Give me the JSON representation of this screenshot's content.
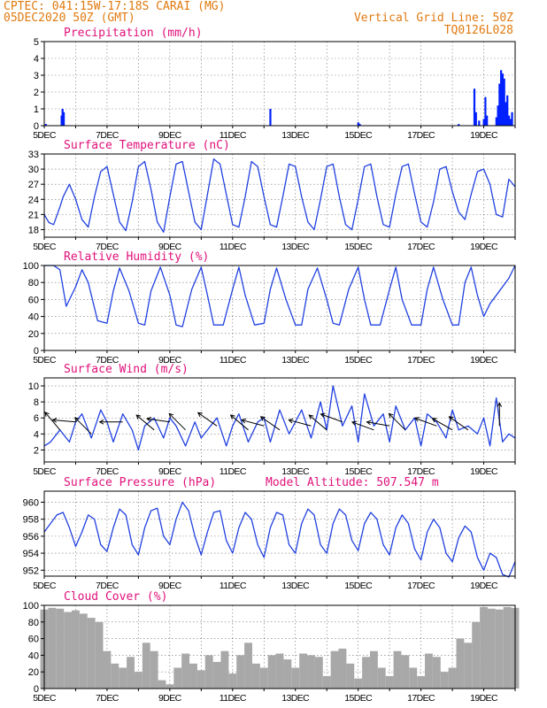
{
  "header": {
    "line1_left": "CPTEC:   041:15W-17:18S  CARAI (MG)",
    "line2_left": "05DEC2020 50Z (GMT)",
    "line1_right": "Vertical Grid Line: 50Z",
    "line2_right": "TQ0126L028",
    "header_color": "#e07a10",
    "title_color": "#e0107a"
  },
  "x_axis": {
    "tick_labels": [
      "5DEC",
      "7DEC",
      "9DEC",
      "11DEC",
      "13DEC",
      "15DEC",
      "17DEC",
      "19DEC"
    ],
    "start_day": 5,
    "end_day": 20
  },
  "chart_data": [
    {
      "id": "precipitation",
      "type": "bar",
      "title": "Precipitation (mm/h)",
      "ylim": [
        0,
        5
      ],
      "yticks": [
        "0",
        "1",
        "2",
        "3",
        "4",
        "5"
      ],
      "color": "#0020ff",
      "grid": true,
      "x": [
        5.05,
        5.55,
        5.58,
        5.62,
        12.2,
        15.0,
        15.05,
        18.2,
        18.7,
        18.75,
        18.85,
        19.0,
        19.05,
        19.1,
        19.4,
        19.45,
        19.5,
        19.55,
        19.6,
        19.65,
        19.7,
        19.75,
        19.8,
        19.85,
        19.9
      ],
      "values": [
        0.1,
        0.6,
        1.0,
        0.8,
        1.0,
        0.2,
        0.1,
        0.1,
        2.2,
        0.8,
        0.3,
        0.4,
        1.7,
        0.6,
        0.5,
        1.2,
        2.5,
        3.3,
        3.1,
        2.8,
        1.4,
        1.8,
        0.6,
        0.4,
        0.8
      ]
    },
    {
      "id": "temperature",
      "type": "line",
      "title": "Surface Temperature (nC)",
      "ylim": [
        16.5,
        33
      ],
      "yticks": [
        "18",
        "21",
        "24",
        "27",
        "30",
        "33"
      ],
      "color": "#2040e0",
      "grid": true,
      "x": [
        5.0,
        5.15,
        5.3,
        5.5,
        5.6,
        5.8,
        6.0,
        6.2,
        6.4,
        6.6,
        6.8,
        7.0,
        7.2,
        7.4,
        7.6,
        7.8,
        8.0,
        8.2,
        8.4,
        8.6,
        8.8,
        9.0,
        9.2,
        9.4,
        9.6,
        9.8,
        10.0,
        10.2,
        10.4,
        10.6,
        10.8,
        11.0,
        11.2,
        11.4,
        11.6,
        11.8,
        12.0,
        12.2,
        12.4,
        12.6,
        12.8,
        13.0,
        13.2,
        13.4,
        13.6,
        13.8,
        14.0,
        14.2,
        14.4,
        14.6,
        14.8,
        15.0,
        15.2,
        15.4,
        15.6,
        15.8,
        16.0,
        16.2,
        16.4,
        16.6,
        16.8,
        17.0,
        17.2,
        17.4,
        17.6,
        17.8,
        18.0,
        18.2,
        18.4,
        18.6,
        18.8,
        19.0,
        19.2,
        19.4,
        19.6,
        19.8,
        20.0
      ],
      "values": [
        21.0,
        19.4,
        19.0,
        22.5,
        24.5,
        27.0,
        24.0,
        20.0,
        18.5,
        24.5,
        29.5,
        30.5,
        25.0,
        19.5,
        17.8,
        23.5,
        30.5,
        31.5,
        26.0,
        19.5,
        17.5,
        24.5,
        31.0,
        31.5,
        25.5,
        19.5,
        18.0,
        25.0,
        32.0,
        31.0,
        25.0,
        19.0,
        18.5,
        24.5,
        31.5,
        30.5,
        24.5,
        19.0,
        18.5,
        24.5,
        31.0,
        30.5,
        24.5,
        19.5,
        18.0,
        24.0,
        30.5,
        31.0,
        24.5,
        19.0,
        18.0,
        24.0,
        30.5,
        31.0,
        24.5,
        19.0,
        18.5,
        25.0,
        30.5,
        31.0,
        25.0,
        19.5,
        18.5,
        23.5,
        30.0,
        30.5,
        25.5,
        21.5,
        20.0,
        25.0,
        29.5,
        30.0,
        27.0,
        21.0,
        20.5,
        28.0,
        26.5
      ]
    },
    {
      "id": "humidity",
      "type": "line",
      "title": "Relative Humidity (%)",
      "ylim": [
        0,
        100
      ],
      "yticks": [
        "0",
        "20",
        "40",
        "60",
        "80",
        "100"
      ],
      "color": "#2040e0",
      "grid": true,
      "x": [
        5.0,
        5.3,
        5.5,
        5.7,
        6.0,
        6.2,
        6.4,
        6.7,
        7.0,
        7.2,
        7.4,
        7.7,
        8.0,
        8.2,
        8.4,
        8.7,
        9.0,
        9.2,
        9.4,
        9.7,
        10.0,
        10.2,
        10.4,
        10.7,
        11.0,
        11.2,
        11.4,
        11.7,
        12.0,
        12.2,
        12.4,
        12.7,
        13.0,
        13.2,
        13.4,
        13.7,
        14.0,
        14.2,
        14.4,
        14.7,
        15.0,
        15.2,
        15.4,
        15.7,
        16.0,
        16.2,
        16.4,
        16.7,
        17.0,
        17.2,
        17.4,
        17.7,
        18.0,
        18.2,
        18.4,
        18.6,
        18.8,
        19.0,
        19.2,
        19.5,
        19.8,
        20.0
      ],
      "values": [
        100,
        100,
        95,
        52,
        75,
        95,
        80,
        35,
        32,
        70,
        97,
        70,
        32,
        30,
        70,
        98,
        65,
        30,
        28,
        72,
        98,
        65,
        30,
        30,
        72,
        98,
        65,
        30,
        32,
        72,
        97,
        60,
        30,
        30,
        72,
        97,
        60,
        32,
        30,
        72,
        98,
        60,
        30,
        30,
        72,
        98,
        60,
        30,
        30,
        72,
        98,
        60,
        30,
        30,
        80,
        98,
        65,
        40,
        55,
        70,
        85,
        100
      ]
    },
    {
      "id": "wind",
      "type": "line",
      "title": "Surface Wind (m/s)",
      "ylim": [
        0.5,
        11
      ],
      "yticks": [
        "2",
        "4",
        "6",
        "8",
        "10"
      ],
      "color": "#2040e0",
      "grid": true,
      "x": [
        5.0,
        5.2,
        5.5,
        5.8,
        6.0,
        6.2,
        6.5,
        6.8,
        7.0,
        7.2,
        7.5,
        7.8,
        8.0,
        8.2,
        8.5,
        8.8,
        9.0,
        9.2,
        9.5,
        9.8,
        10.0,
        10.2,
        10.5,
        10.8,
        11.0,
        11.2,
        11.5,
        11.8,
        12.0,
        12.2,
        12.5,
        12.8,
        13.0,
        13.2,
        13.5,
        13.8,
        14.0,
        14.2,
        14.5,
        14.8,
        15.0,
        15.2,
        15.5,
        15.8,
        16.0,
        16.2,
        16.5,
        16.8,
        17.0,
        17.2,
        17.5,
        17.8,
        18.0,
        18.2,
        18.5,
        18.8,
        19.0,
        19.2,
        19.4,
        19.6,
        19.8,
        20.0
      ],
      "values": [
        2.5,
        3.0,
        4.5,
        3.0,
        5.5,
        6.5,
        3.5,
        7.0,
        5.5,
        3.0,
        6.5,
        4.5,
        2.0,
        5.0,
        6.0,
        3.5,
        6.0,
        5.0,
        2.5,
        5.5,
        3.5,
        4.5,
        6.0,
        2.5,
        5.0,
        6.5,
        3.0,
        5.5,
        6.0,
        3.0,
        7.0,
        4.0,
        5.5,
        7.0,
        3.5,
        8.0,
        4.5,
        10.0,
        5.0,
        7.5,
        3.0,
        9.0,
        5.0,
        6.5,
        3.0,
        7.5,
        4.5,
        6.0,
        2.5,
        6.5,
        5.5,
        3.5,
        7.0,
        4.5,
        5.0,
        4.0,
        6.0,
        2.5,
        8.5,
        3.0,
        4.0,
        3.5
      ],
      "arrows": [
        {
          "day": 5.5,
          "speed": 4.5,
          "dir": -50
        },
        {
          "day": 6.0,
          "speed": 5.5,
          "dir": -5
        },
        {
          "day": 6.5,
          "speed": 4.0,
          "dir": -45
        },
        {
          "day": 7.5,
          "speed": 5.5,
          "dir": 0
        },
        {
          "day": 8.5,
          "speed": 4.5,
          "dir": -40
        },
        {
          "day": 9.0,
          "speed": 5.5,
          "dir": -8
        },
        {
          "day": 9.5,
          "speed": 4.5,
          "dir": -45
        },
        {
          "day": 10.5,
          "speed": 5.0,
          "dir": -35
        },
        {
          "day": 11.5,
          "speed": 4.5,
          "dir": -40
        },
        {
          "day": 12.0,
          "speed": 5.0,
          "dir": -15
        },
        {
          "day": 12.5,
          "speed": 4.5,
          "dir": -35
        },
        {
          "day": 13.5,
          "speed": 5.0,
          "dir": -15
        },
        {
          "day": 14.0,
          "speed": 4.5,
          "dir": -40
        },
        {
          "day": 14.5,
          "speed": 5.5,
          "dir": -20
        },
        {
          "day": 15.5,
          "speed": 4.5,
          "dir": -20
        },
        {
          "day": 16.0,
          "speed": 5.0,
          "dir": -10
        },
        {
          "day": 16.5,
          "speed": 4.5,
          "dir": -45
        },
        {
          "day": 17.5,
          "speed": 5.0,
          "dir": -20
        },
        {
          "day": 18.0,
          "speed": 4.5,
          "dir": -30
        },
        {
          "day": 18.5,
          "speed": 4.5,
          "dir": -35
        },
        {
          "day": 19.5,
          "speed": 5.0,
          "dir": -90
        }
      ]
    },
    {
      "id": "pressure",
      "type": "line",
      "title": "Surface Pressure (hPa)",
      "annotation": "Model Altitude: 507.547 m",
      "ylim": [
        951.3,
        961.3
      ],
      "yticks": [
        "952",
        "954",
        "956",
        "958",
        "960"
      ],
      "color": "#2040e0",
      "grid": true,
      "x": [
        5.0,
        5.2,
        5.4,
        5.6,
        5.8,
        6.0,
        6.2,
        6.4,
        6.6,
        6.8,
        7.0,
        7.2,
        7.4,
        7.6,
        7.8,
        8.0,
        8.2,
        8.4,
        8.6,
        8.8,
        9.0,
        9.2,
        9.4,
        9.6,
        9.8,
        10.0,
        10.2,
        10.4,
        10.6,
        10.8,
        11.0,
        11.2,
        11.4,
        11.6,
        11.8,
        12.0,
        12.2,
        12.4,
        12.6,
        12.8,
        13.0,
        13.2,
        13.4,
        13.6,
        13.8,
        14.0,
        14.2,
        14.4,
        14.6,
        14.8,
        15.0,
        15.2,
        15.4,
        15.6,
        15.8,
        16.0,
        16.2,
        16.4,
        16.6,
        16.8,
        17.0,
        17.2,
        17.4,
        17.6,
        17.8,
        18.0,
        18.2,
        18.4,
        18.6,
        18.8,
        19.0,
        19.2,
        19.4,
        19.6,
        19.8,
        20.0
      ],
      "values": [
        956.5,
        957.5,
        958.5,
        958.8,
        957.0,
        954.8,
        956.5,
        958.5,
        958.0,
        955.0,
        954.2,
        957.0,
        959.2,
        958.5,
        955.0,
        953.8,
        957.0,
        959.0,
        959.3,
        956.0,
        955.0,
        958.0,
        960.0,
        959.0,
        956.0,
        953.8,
        956.5,
        958.8,
        959.0,
        955.5,
        954.0,
        957.0,
        958.8,
        958.0,
        955.0,
        953.5,
        957.0,
        958.8,
        958.5,
        955.0,
        954.0,
        957.5,
        959.2,
        958.5,
        955.0,
        954.0,
        957.5,
        959.2,
        958.5,
        955.5,
        954.3,
        957.5,
        958.8,
        958.0,
        955.0,
        953.8,
        957.0,
        958.5,
        957.5,
        954.5,
        953.2,
        956.5,
        958.0,
        957.0,
        954.0,
        953.0,
        955.8,
        957.2,
        956.5,
        953.5,
        952.0,
        954.0,
        953.5,
        951.5,
        951.2,
        953.0
      ]
    },
    {
      "id": "cloud",
      "type": "bar",
      "title": "Cloud Cover (%)",
      "ylim": [
        0,
        100
      ],
      "yticks": [
        "0",
        "20",
        "40",
        "60",
        "80",
        "100"
      ],
      "color": "#a8a8a8",
      "grid": true,
      "x": [
        5.0,
        5.25,
        5.5,
        5.75,
        6.0,
        6.25,
        6.5,
        6.75,
        7.0,
        7.25,
        7.5,
        7.75,
        8.0,
        8.25,
        8.5,
        8.75,
        9.0,
        9.25,
        9.5,
        9.75,
        10.0,
        10.25,
        10.5,
        10.75,
        11.0,
        11.25,
        11.5,
        11.75,
        12.0,
        12.25,
        12.5,
        12.75,
        13.0,
        13.25,
        13.5,
        13.75,
        14.0,
        14.25,
        14.5,
        14.75,
        15.0,
        15.25,
        15.5,
        15.75,
        16.0,
        16.25,
        16.5,
        16.75,
        17.0,
        17.25,
        17.5,
        17.75,
        18.0,
        18.25,
        18.5,
        18.75,
        19.0,
        19.25,
        19.5,
        19.75,
        20.0
      ],
      "values": [
        95,
        97,
        96,
        92,
        94,
        90,
        85,
        80,
        45,
        30,
        25,
        38,
        20,
        55,
        45,
        10,
        5,
        25,
        42,
        30,
        22,
        40,
        32,
        45,
        18,
        40,
        55,
        30,
        25,
        40,
        42,
        35,
        25,
        42,
        40,
        38,
        15,
        45,
        48,
        30,
        12,
        38,
        45,
        25,
        15,
        45,
        40,
        25,
        15,
        42,
        38,
        20,
        25,
        60,
        55,
        80,
        98,
        96,
        95,
        98,
        97
      ]
    }
  ]
}
